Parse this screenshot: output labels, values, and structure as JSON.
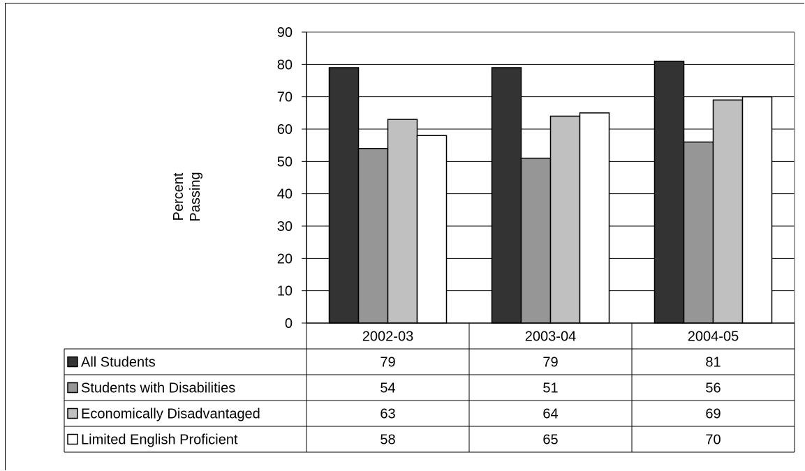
{
  "chart_data": {
    "type": "bar",
    "title": "",
    "xlabel": "",
    "ylabel": "Percent Passing",
    "ylim": [
      0,
      90
    ],
    "yticks": [
      0,
      10,
      20,
      30,
      40,
      50,
      60,
      70,
      80,
      90
    ],
    "grid": true,
    "legend": "data-table",
    "categories": [
      "2002-03",
      "2003-04",
      "2004-05"
    ],
    "series": [
      {
        "name": "All Students",
        "color": "#333333",
        "values": [
          79,
          79,
          81
        ]
      },
      {
        "name": "Students with Disabilities",
        "color": "#969696",
        "values": [
          54,
          51,
          56
        ]
      },
      {
        "name": "Economically Disadvantaged",
        "color": "#c0c0c0",
        "values": [
          63,
          64,
          69
        ]
      },
      {
        "name": "Limited English Proficient",
        "color": "#ffffff",
        "values": [
          58,
          65,
          70
        ]
      }
    ]
  }
}
